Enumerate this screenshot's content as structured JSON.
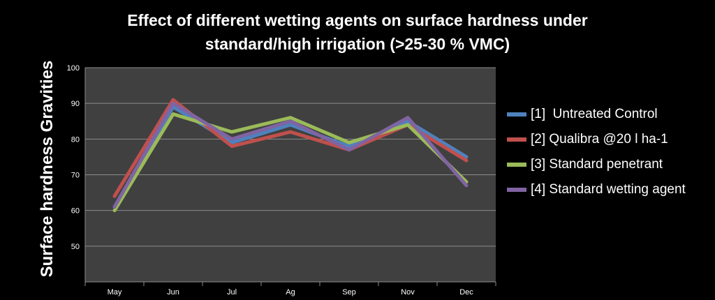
{
  "chart_data": {
    "type": "line",
    "title_lines": [
      "Effect of different wetting agents on surface hardness under",
      "standard/high irrigation (>25-30 % VMC)"
    ],
    "ylabel": "Surface hardness Gravities",
    "xlabel": "",
    "categories": [
      "May",
      "Jun",
      "Jul",
      "Ag",
      "Sep",
      "Nov",
      "Dec"
    ],
    "ylim": [
      40,
      100
    ],
    "yticks": [
      50,
      60,
      70,
      80,
      90,
      100
    ],
    "grid": true,
    "legend_position": "right",
    "plot_background": "#404040",
    "series": [
      {
        "name": "[1]  Untreated Control",
        "color": "#4f81bd",
        "values": [
          61,
          89,
          79,
          84,
          78,
          85,
          75
        ]
      },
      {
        "name": "[2] Qualibra @20 l ha-1",
        "color": "#c0504d",
        "values": [
          64,
          91,
          78,
          82,
          77,
          84,
          74
        ]
      },
      {
        "name": "[3] Standard penetrant",
        "color": "#9bbb59",
        "values": [
          60,
          87,
          82,
          86,
          79,
          84,
          68
        ]
      },
      {
        "name": "[4] Standard wetting agent",
        "color": "#8064a2",
        "values": [
          61,
          90,
          80,
          85,
          77,
          86,
          67
        ]
      }
    ]
  }
}
